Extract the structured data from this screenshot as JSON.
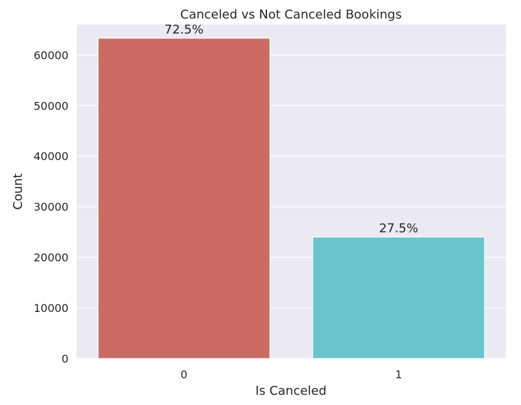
{
  "chart_data": {
    "type": "bar",
    "title": "Canceled vs Not Canceled Bookings",
    "xlabel": "Is Canceled",
    "ylabel": "Count",
    "categories": [
      "0",
      "1"
    ],
    "values": [
      63300,
      24000
    ],
    "data_labels": [
      "72.5%",
      "27.5%"
    ],
    "bar_colors": [
      "#c96b62",
      "#69c4cb"
    ],
    "background_color": "#eaeaf2",
    "gridline_color": "#ffffff",
    "ylim": [
      0,
      66000
    ],
    "yticks": [
      0,
      10000,
      20000,
      30000,
      40000,
      50000,
      60000
    ],
    "grid": true,
    "legend": "none"
  }
}
